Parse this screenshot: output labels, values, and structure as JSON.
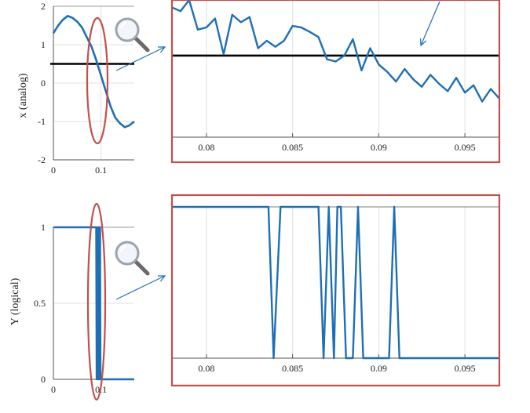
{
  "colors": {
    "signal": "#1f6fb5",
    "threshold": "#000000",
    "highlight": "#c0504d",
    "grid": "#e0e0e0",
    "axis": "#555555"
  },
  "icons": [
    "magnifier-icon",
    "magnifier-icon"
  ],
  "chart_data": [
    {
      "type": "line",
      "panel": "top-left",
      "ylabel": "x (analog)",
      "xlim": [
        0,
        0.17
      ],
      "ylim": [
        -2,
        2
      ],
      "xticks": [
        0,
        0.1
      ],
      "xtick_labels": [
        "0",
        "0.1"
      ],
      "yticks": [
        -2,
        -1,
        0,
        1,
        2
      ],
      "ytick_labels": [
        "-2",
        "-1",
        "0",
        "1",
        "2"
      ],
      "threshold": 0.5,
      "series": [
        {
          "x": [
            0,
            0.01,
            0.02,
            0.03,
            0.04,
            0.05,
            0.06,
            0.07,
            0.08,
            0.09,
            0.1,
            0.11,
            0.12,
            0.13,
            0.14,
            0.15,
            0.16,
            0.17
          ],
          "values": [
            1.3,
            1.5,
            1.65,
            1.75,
            1.7,
            1.6,
            1.45,
            1.2,
            0.95,
            0.6,
            0.2,
            -0.2,
            -0.6,
            -0.9,
            -1.05,
            -1.15,
            -1.1,
            -1.0
          ]
        }
      ]
    },
    {
      "type": "line",
      "panel": "top-right-zoom",
      "xlim": [
        0.078,
        0.097
      ],
      "ylim": [
        -0.6,
        1.25
      ],
      "xticks": [
        0.08,
        0.085,
        0.09,
        0.095
      ],
      "xtick_labels": [
        "0.08",
        "0.085",
        "0.09",
        "0.095"
      ],
      "threshold": 0.5,
      "series": [
        {
          "x": [
            0.078,
            0.0785,
            0.079,
            0.0795,
            0.08,
            0.0805,
            0.081,
            0.0815,
            0.082,
            0.0825,
            0.083,
            0.0835,
            0.084,
            0.0845,
            0.085,
            0.0855,
            0.086,
            0.0865,
            0.087,
            0.0875,
            0.088,
            0.0885,
            0.089,
            0.0895,
            0.09,
            0.0905,
            0.091,
            0.0915,
            0.092,
            0.0925,
            0.093,
            0.0935,
            0.094,
            0.0945,
            0.095,
            0.0955,
            0.096,
            0.0965,
            0.097
          ],
          "values": [
            1.15,
            1.1,
            1.25,
            0.85,
            0.88,
            1.0,
            0.52,
            1.05,
            0.95,
            1.02,
            0.6,
            0.7,
            0.62,
            0.7,
            0.9,
            0.88,
            0.82,
            0.75,
            0.45,
            0.42,
            0.5,
            0.72,
            0.3,
            0.6,
            0.38,
            0.28,
            0.15,
            0.32,
            0.18,
            0.08,
            0.24,
            0.12,
            0.02,
            0.2,
            0.0,
            0.1,
            -0.12,
            0.05,
            -0.08
          ]
        }
      ]
    },
    {
      "type": "line",
      "panel": "bottom-left",
      "ylabel": "Y (logical)",
      "xlim": [
        0,
        0.17
      ],
      "ylim": [
        0,
        1
      ],
      "xticks": [
        0,
        0.1
      ],
      "xtick_labels": [
        "0",
        "0.1"
      ],
      "yticks": [
        0,
        0.5,
        1
      ],
      "ytick_labels": [
        "0",
        "0.5",
        "1"
      ],
      "series": [
        {
          "x": [
            0,
            0.09,
            0.091,
            0.092,
            0.093,
            0.094,
            0.095,
            0.096,
            0.097,
            0.098,
            0.099,
            0.1,
            0.17
          ],
          "values": [
            1,
            1,
            0,
            1,
            0,
            1,
            0,
            1,
            0,
            1,
            0,
            0,
            0
          ]
        }
      ]
    },
    {
      "type": "line",
      "panel": "bottom-right-zoom",
      "xlim": [
        0.078,
        0.097
      ],
      "ylim": [
        0,
        1
      ],
      "xticks": [
        0.08,
        0.085,
        0.09,
        0.095
      ],
      "xtick_labels": [
        "0.08",
        "0.085",
        "0.09",
        "0.095"
      ],
      "series": [
        {
          "x": [
            0.078,
            0.0836,
            0.0839,
            0.0843,
            0.0865,
            0.0868,
            0.0871,
            0.0874,
            0.0876,
            0.0878,
            0.0881,
            0.0885,
            0.0888,
            0.0891,
            0.0894,
            0.0906,
            0.0909,
            0.0912,
            0.097
          ],
          "values": [
            1,
            1,
            0,
            1,
            1,
            0,
            1,
            0,
            1,
            1,
            0,
            0,
            1,
            0,
            0,
            0,
            1,
            0,
            0
          ]
        }
      ]
    }
  ]
}
